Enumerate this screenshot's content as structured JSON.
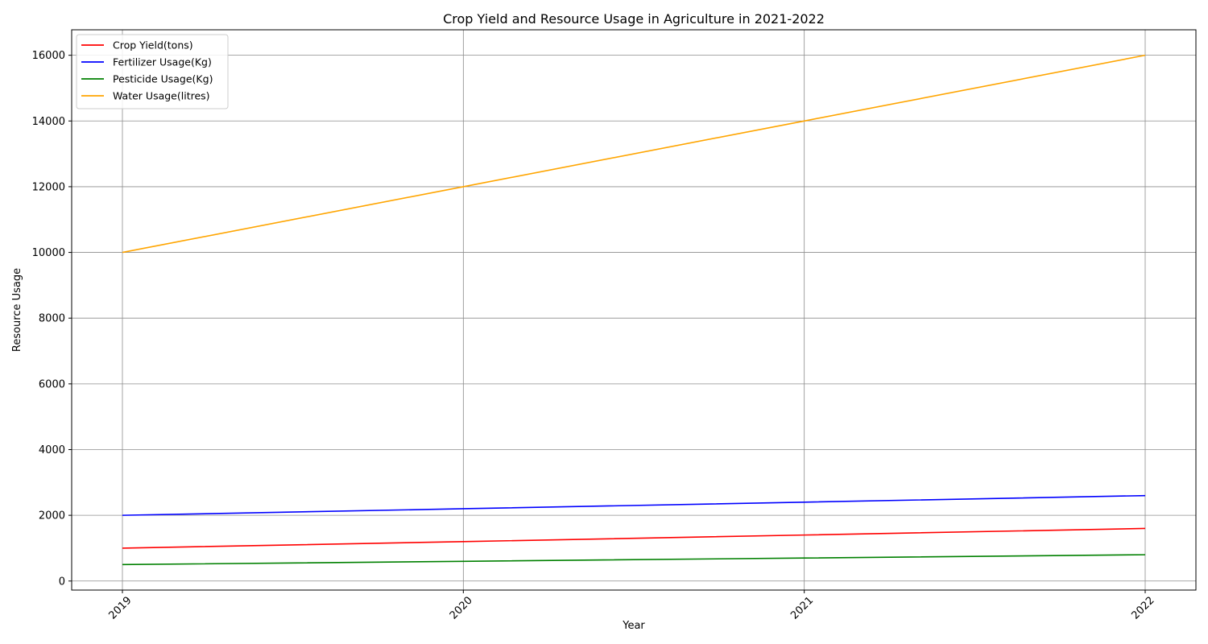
{
  "chart_data": {
    "type": "line",
    "title": "Crop Yield and Resource Usage in Agriculture in 2021-2022",
    "xlabel": "Year",
    "ylabel": "Resource Usage",
    "x": [
      "2019",
      "2020",
      "2021",
      "2022"
    ],
    "series": [
      {
        "name": "Crop Yield(tons)",
        "color": "#ff0000",
        "values": [
          1000,
          1200,
          1400,
          1600
        ]
      },
      {
        "name": "Fertilizer Usage(Kg)",
        "color": "#0000ff",
        "values": [
          2000,
          2200,
          2400,
          2600
        ]
      },
      {
        "name": "Pesticide Usage(Kg)",
        "color": "#008000",
        "values": [
          500,
          600,
          700,
          800
        ]
      },
      {
        "name": "Water Usage(litres)",
        "color": "#ffa500",
        "values": [
          10000,
          12000,
          14000,
          16000
        ]
      }
    ],
    "yticks": [
      0,
      2000,
      4000,
      6000,
      8000,
      10000,
      12000,
      14000,
      16000
    ],
    "ylim": [
      -275,
      16775
    ],
    "grid": true,
    "legend": "top-left",
    "xtick_rotation": -45
  }
}
